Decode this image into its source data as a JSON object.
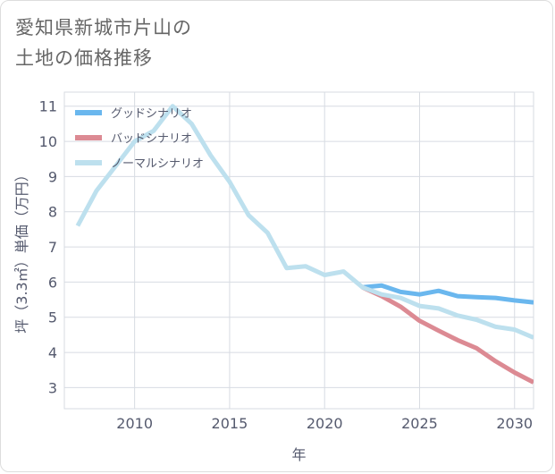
{
  "page": {
    "title_line1": "愛知県新城市片山の",
    "title_line2": "土地の価格推移"
  },
  "colors": {
    "good": "#6ab7ee",
    "bad": "#dc8a93",
    "normal": "#bde0ee",
    "grid": "#d7dbe2",
    "axis_text": "#555a6e"
  },
  "chart_data": {
    "type": "line",
    "title": "",
    "xlabel": "年",
    "ylabel": "坪（3.3㎡）単価（万円）",
    "xlim": [
      2006.3,
      2031
    ],
    "ylim": [
      2.4,
      11.4
    ],
    "xticks": [
      2010,
      2015,
      2020,
      2025,
      2030
    ],
    "yticks": [
      3,
      4,
      5,
      6,
      7,
      8,
      9,
      10,
      11
    ],
    "grid": true,
    "legend_position": "top-left",
    "series": [
      {
        "name": "グッドシナリオ",
        "color_key": "good",
        "x": [
          2022,
          2023,
          2024,
          2025,
          2026,
          2027,
          2028,
          2029,
          2030,
          2031
        ],
        "y": [
          5.85,
          5.9,
          5.72,
          5.65,
          5.75,
          5.6,
          5.57,
          5.55,
          5.48,
          5.42
        ]
      },
      {
        "name": "バッドシナリオ",
        "color_key": "bad",
        "x": [
          2022,
          2023,
          2024,
          2025,
          2026,
          2027,
          2028,
          2029,
          2030,
          2031
        ],
        "y": [
          5.85,
          5.6,
          5.3,
          4.9,
          4.62,
          4.35,
          4.12,
          3.75,
          3.43,
          3.15
        ]
      },
      {
        "name": "ノーマルシナリオ",
        "color_key": "normal",
        "x": [
          2007,
          2008,
          2009,
          2010,
          2011,
          2012,
          2013,
          2014,
          2015,
          2016,
          2017,
          2018,
          2019,
          2020,
          2021,
          2022,
          2023,
          2024,
          2025,
          2026,
          2027,
          2028,
          2029,
          2030,
          2031
        ],
        "y": [
          7.6,
          8.6,
          9.3,
          10.0,
          10.3,
          11.0,
          10.5,
          9.6,
          8.85,
          7.9,
          7.4,
          6.4,
          6.45,
          6.2,
          6.3,
          5.85,
          5.65,
          5.55,
          5.32,
          5.25,
          5.05,
          4.93,
          4.73,
          4.65,
          4.42
        ]
      }
    ]
  }
}
